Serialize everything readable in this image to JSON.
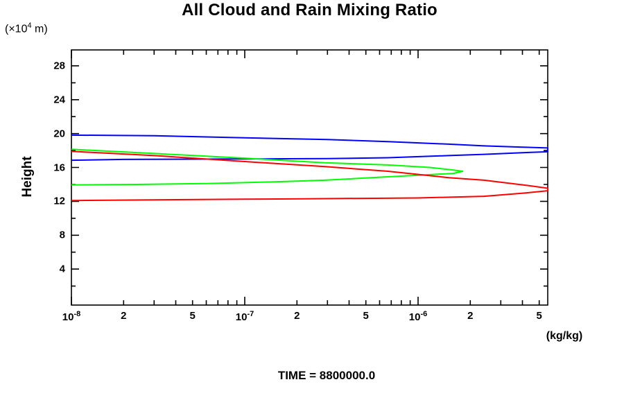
{
  "figure": {
    "title": "All Cloud and Rain Mixing Ratio",
    "y_axis_title": "Height",
    "y_axis_unit": {
      "prefix": "(×10",
      "exponent": "4",
      "suffix": " m)"
    },
    "x_axis_unit": "(kg/kg)",
    "footer": "TIME = 8800000.0"
  },
  "chart_data": {
    "type": "line",
    "title": "All Cloud and Rain Mixing Ratio",
    "xlabel": "(kg/kg)",
    "ylabel": "Height (x10^4 m)",
    "footer": "TIME = 8800000.0",
    "x_scale": "log",
    "x_range": [
      1e-08,
      5.6e-06
    ],
    "y_range": [
      0,
      30
    ],
    "grid": false,
    "legend": "none",
    "frame_color": "#000000",
    "x_ticks": [
      {
        "value": 1e-08,
        "base": "10",
        "exp": "-8"
      },
      {
        "value": 2e-08,
        "text": "2"
      },
      {
        "value": 5e-08,
        "text": "5"
      },
      {
        "value": 1e-07,
        "base": "10",
        "exp": "-7"
      },
      {
        "value": 2e-07,
        "text": "2"
      },
      {
        "value": 5e-07,
        "text": "5"
      },
      {
        "value": 1e-06,
        "base": "10",
        "exp": "-6"
      },
      {
        "value": 2e-06,
        "text": "2"
      },
      {
        "value": 5e-06,
        "text": "5"
      }
    ],
    "y_ticks": [
      4,
      8,
      12,
      16,
      20,
      24,
      28
    ],
    "y_minor_step": 2,
    "series": [
      {
        "name": "blue-profile",
        "color": "#0000ff",
        "points": [
          [
            1e-08,
            19.82
          ],
          [
            3e-08,
            19.75
          ],
          [
            1e-07,
            19.5
          ],
          [
            3e-07,
            19.3
          ],
          [
            6.7e-07,
            19.05
          ],
          [
            1.5e-06,
            18.75
          ],
          [
            2.4e-06,
            18.55
          ],
          [
            4e-06,
            18.4
          ],
          [
            5.6e-06,
            18.3
          ],
          [
            5.6e-06,
            17.85
          ],
          [
            4e-06,
            17.75
          ],
          [
            2.4e-06,
            17.55
          ],
          [
            1.5e-06,
            17.4
          ],
          [
            6.7e-07,
            17.15
          ],
          [
            3e-07,
            17.05
          ],
          [
            1e-07,
            17.0
          ],
          [
            2e-08,
            16.95
          ],
          [
            1e-08,
            16.85
          ]
        ]
      },
      {
        "name": "green-profile",
        "color": "#00ff00",
        "points": [
          [
            1e-08,
            18.15
          ],
          [
            3e-08,
            17.65
          ],
          [
            1e-07,
            17.1
          ],
          [
            2.9e-07,
            16.55
          ],
          [
            6.7e-07,
            16.3
          ],
          [
            1.17e-06,
            16.0
          ],
          [
            1.6e-06,
            15.7
          ],
          [
            1.81e-06,
            15.55
          ],
          [
            1.6e-06,
            15.3
          ],
          [
            1.17e-06,
            15.15
          ],
          [
            6.7e-07,
            14.9
          ],
          [
            2.9e-07,
            14.5
          ],
          [
            1.5e-07,
            14.3
          ],
          [
            6e-08,
            14.1
          ],
          [
            2.4e-08,
            14.0
          ],
          [
            1e-08,
            13.95
          ]
        ]
      },
      {
        "name": "red-profile",
        "color": "#ff0000",
        "points": [
          [
            1e-08,
            17.9
          ],
          [
            3e-08,
            17.4
          ],
          [
            1e-07,
            16.7
          ],
          [
            2.9e-07,
            16.1
          ],
          [
            6.7e-07,
            15.55
          ],
          [
            1.5e-06,
            14.8
          ],
          [
            2.4e-06,
            14.5
          ],
          [
            4.2e-06,
            13.9
          ],
          [
            5.6e-06,
            13.55
          ],
          [
            5.6e-06,
            13.25
          ],
          [
            4.2e-06,
            13.0
          ],
          [
            2.4e-06,
            12.6
          ],
          [
            1e-06,
            12.4
          ],
          [
            2.2e-07,
            12.3
          ],
          [
            1e-07,
            12.25
          ],
          [
            1e-08,
            12.1
          ]
        ]
      }
    ]
  }
}
